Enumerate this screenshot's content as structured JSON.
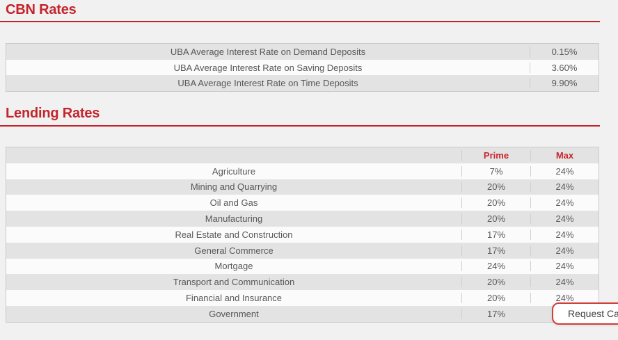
{
  "page": {
    "background": "#f1f1f2",
    "accent_red": "#c4252b",
    "text_color": "#58585b"
  },
  "cbn_rates": {
    "title": "CBN Rates",
    "rows": [
      {
        "label": "UBA Average Interest Rate on Demand Deposits",
        "value": "0.15%"
      },
      {
        "label": "UBA Average Interest Rate on Saving Deposits",
        "value": "3.60%"
      },
      {
        "label": "UBA Average Interest Rate on Time Deposits",
        "value": "9.90%"
      }
    ]
  },
  "lending_rates": {
    "title": "Lending Rates",
    "columns": {
      "prime": "Prime",
      "max": "Max"
    },
    "rows": [
      {
        "label": "Agriculture",
        "prime": "7%",
        "max": "24%"
      },
      {
        "label": "Mining and Quarrying",
        "prime": "20%",
        "max": "24%"
      },
      {
        "label": "Oil and Gas",
        "prime": "20%",
        "max": "24%"
      },
      {
        "label": "Manufacturing",
        "prime": "20%",
        "max": "24%"
      },
      {
        "label": "Real Estate and Construction",
        "prime": "17%",
        "max": "24%"
      },
      {
        "label": "General Commerce",
        "prime": "17%",
        "max": "24%"
      },
      {
        "label": "Mortgage",
        "prime": "24%",
        "max": "24%"
      },
      {
        "label": "Transport and Communication",
        "prime": "20%",
        "max": "24%"
      },
      {
        "label": "Financial and Insurance",
        "prime": "20%",
        "max": "24%"
      },
      {
        "label": "Government",
        "prime": "17%",
        "max": ""
      }
    ]
  },
  "request_call_button": {
    "label": "Request Call"
  }
}
